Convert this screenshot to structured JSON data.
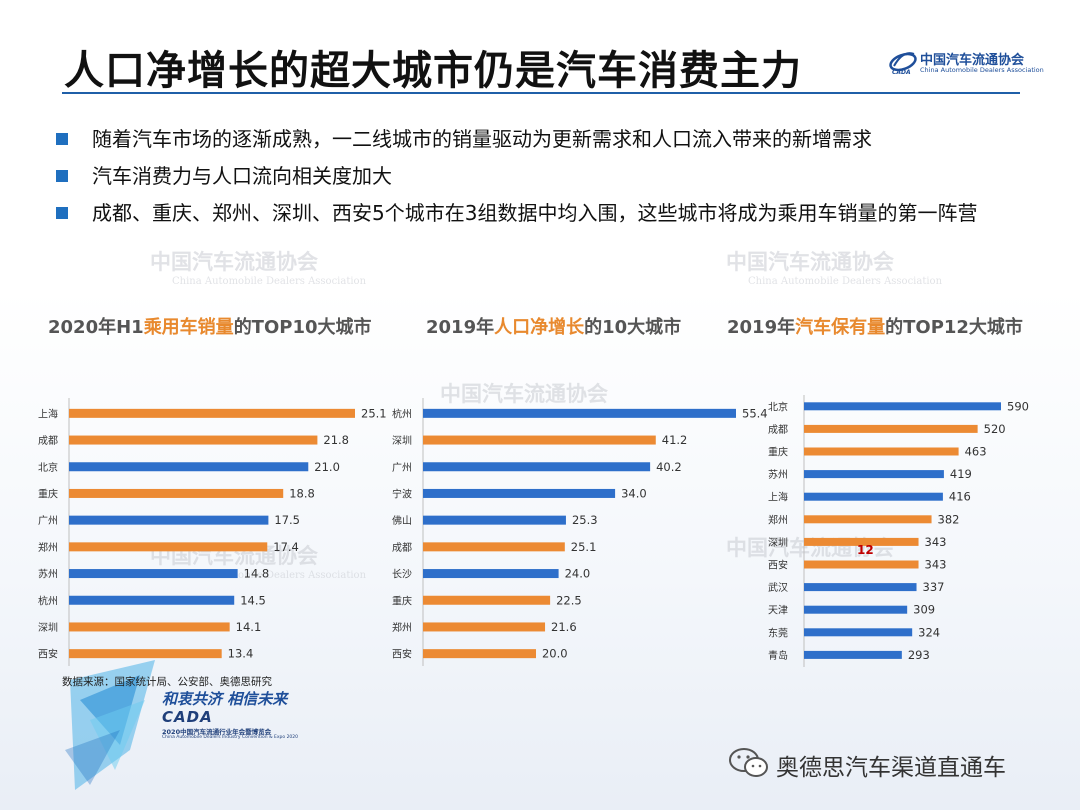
{
  "header": {
    "title": "人口净增长的超大城市仍是汽车消费主力",
    "logo_cn": "中国汽车流通协会",
    "logo_en": "China Automobile Dealers Association"
  },
  "bullets": [
    "随着汽车市场的逐渐成熟，一二线城市的销量驱动为更新需求和人口流入带来的新增需求",
    "汽车消费力与人口流向相关度加大",
    "成都、重庆、郑州、深圳、西安5个城市在3组数据中均入围，这些城市将成为乘用车销量的第一阵营"
  ],
  "watermark": {
    "cn": "中国汽车流通协会",
    "en": "China Automobile Dealers Association"
  },
  "colors": {
    "blue": "#2e6fca",
    "orange": "#ec8a33",
    "accent": "#e8892e",
    "title_rule": "#1f5fa8"
  },
  "chart_titles": [
    {
      "pre": "2020年H1",
      "hl": "乘用车销量",
      "post": "的TOP10大城市"
    },
    {
      "pre": "2019年",
      "hl": "人口净增长",
      "post": "的10大城市"
    },
    {
      "pre": "2019年",
      "hl": "汽车保有量",
      "post": "的TOP12大城市"
    }
  ],
  "chart_data": [
    {
      "type": "bar",
      "orientation": "horizontal",
      "title": "2020年H1乘用车销量的TOP10大城市",
      "categories": [
        "上海",
        "成都",
        "北京",
        "重庆",
        "广州",
        "郑州",
        "苏州",
        "杭州",
        "深圳",
        "西安"
      ],
      "values": [
        25.1,
        21.8,
        21.0,
        18.8,
        17.5,
        17.4,
        14.8,
        14.5,
        14.1,
        13.4
      ],
      "labels": [
        "25.1",
        "21.8",
        "21.0",
        "18.8",
        "17.5",
        "17.4",
        "14.8",
        "14.5",
        "14.1",
        "13.4"
      ],
      "highlight": [
        "orange",
        "orange",
        "blue",
        "orange",
        "blue",
        "orange",
        "blue",
        "blue",
        "orange",
        "orange"
      ],
      "xlim": [
        0,
        25.1
      ]
    },
    {
      "type": "bar",
      "orientation": "horizontal",
      "title": "2019年人口净增长的10大城市",
      "categories": [
        "杭州",
        "深圳",
        "广州",
        "宁波",
        "佛山",
        "成都",
        "长沙",
        "重庆",
        "郑州",
        "西安"
      ],
      "values": [
        55.4,
        41.2,
        40.2,
        34.0,
        25.3,
        25.1,
        24.0,
        22.5,
        21.6,
        20.0
      ],
      "labels": [
        "55.4",
        "41.2",
        "40.2",
        "34.0",
        "25.3",
        "25.1",
        "24.0",
        "22.5",
        "21.6",
        "20.0"
      ],
      "highlight": [
        "blue",
        "orange",
        "blue",
        "blue",
        "blue",
        "orange",
        "blue",
        "orange",
        "orange",
        "orange"
      ],
      "xlim": [
        0,
        55.4
      ]
    },
    {
      "type": "bar",
      "orientation": "horizontal",
      "title": "2019年汽车保有量的TOP12大城市",
      "categories": [
        "北京",
        "成都",
        "重庆",
        "苏州",
        "上海",
        "郑州",
        "深圳",
        "西安",
        "武汉",
        "天津",
        "东莞",
        "青岛"
      ],
      "values": [
        590,
        520,
        463,
        419,
        416,
        382,
        343,
        343,
        337,
        309,
        324,
        293
      ],
      "labels": [
        "590",
        "520",
        "463",
        "419",
        "416",
        "382",
        "343",
        "343",
        "337",
        "309",
        "324",
        "293"
      ],
      "highlight": [
        "blue",
        "orange",
        "orange",
        "blue",
        "blue",
        "orange",
        "orange",
        "orange",
        "blue",
        "blue",
        "blue",
        "blue"
      ],
      "xlim": [
        0,
        590
      ],
      "annotation": "12"
    }
  ],
  "footer": {
    "source": "数据来源：国家统计局、公安部、奥德思研究",
    "slogan": "和衷共济 相信未来",
    "event_brand": "CADA",
    "event_name": "2020中国汽车流通行业年会暨博览会",
    "event_en": "China Automobile Dealers Industry Convention & Expo 2020",
    "wechat": "奥德思汽车渠道直通车"
  }
}
